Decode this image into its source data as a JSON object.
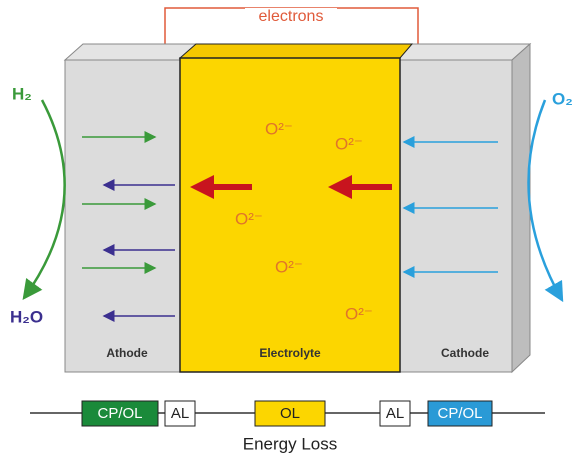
{
  "wire": {
    "label": "electrons"
  },
  "gases": {
    "h2": "H₂",
    "h2o": "H₂O",
    "o2": "O₂"
  },
  "ions": [
    "O²⁻",
    "O²⁻",
    "O²⁻",
    "O²⁻",
    "O²⁻"
  ],
  "regions": {
    "anode": "Athode",
    "electrolyte": "Electrolyte",
    "cathode": "Cathode"
  },
  "losses": {
    "items": [
      "CP/OL",
      "AL",
      "OL",
      "AL",
      "CP/OL"
    ],
    "caption": "Energy Loss"
  }
}
